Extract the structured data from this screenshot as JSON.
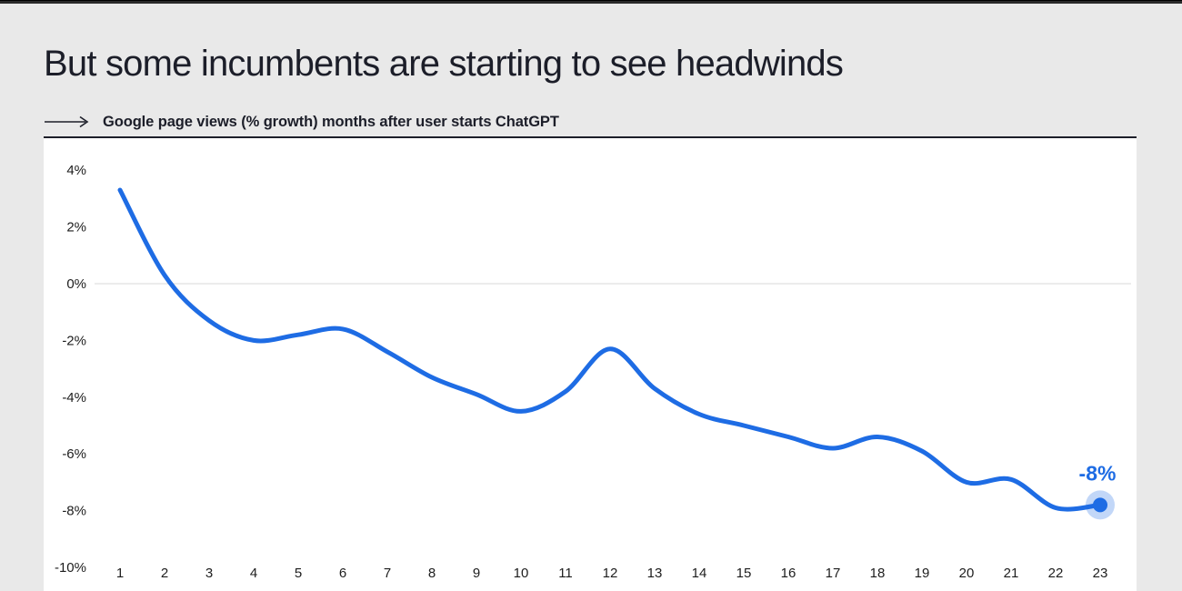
{
  "page": {
    "title": "But some incumbents are starting to see headwinds"
  },
  "colors": {
    "bg": "#e9e9e9",
    "panel": "#ffffff",
    "ink": "#1c1e29",
    "axis": "#1d1d1d",
    "grid": "#d9d9d9",
    "accent": "#1e6ce4",
    "topbar": "#2a2a2a"
  },
  "icons": {
    "subtitle_arrow": "long-right-arrow-icon"
  },
  "chart_data": {
    "type": "line",
    "title": "Google page views (% growth) months after user starts ChatGPT",
    "xlabel": "months after user starts ChatGPT",
    "ylabel": "Google page views % growth",
    "x": [
      1,
      2,
      3,
      4,
      5,
      6,
      7,
      8,
      9,
      10,
      11,
      12,
      13,
      14,
      15,
      16,
      17,
      18,
      19,
      20,
      21,
      22,
      23
    ],
    "series": [
      {
        "name": "Google page views % growth",
        "values": [
          3.3,
          0.3,
          -1.3,
          -2.0,
          -1.8,
          -1.6,
          -2.4,
          -3.3,
          -3.9,
          -4.5,
          -3.8,
          -2.3,
          -3.7,
          -4.6,
          -5.0,
          -5.4,
          -5.8,
          -5.4,
          -5.9,
          -7.0,
          -6.9,
          -7.9,
          -7.8
        ]
      }
    ],
    "end_label": "-8%",
    "ylim": [
      -10.7,
      5.1
    ],
    "y_ticks": [
      "4%",
      "2%",
      "0%",
      "-2%",
      "-4%",
      "-6%",
      "-8%",
      "-10%"
    ],
    "x_ticks": [
      "1",
      "2",
      "3",
      "4",
      "5",
      "6",
      "7",
      "8",
      "9",
      "10",
      "11",
      "12",
      "13",
      "14",
      "15",
      "16",
      "17",
      "18",
      "19",
      "20",
      "21",
      "22",
      "23"
    ],
    "grid": "horizontal gridline at 0% only",
    "legend": "none",
    "line_color": "#1e6ce4",
    "marker": "filled dot with light halo on last point"
  }
}
